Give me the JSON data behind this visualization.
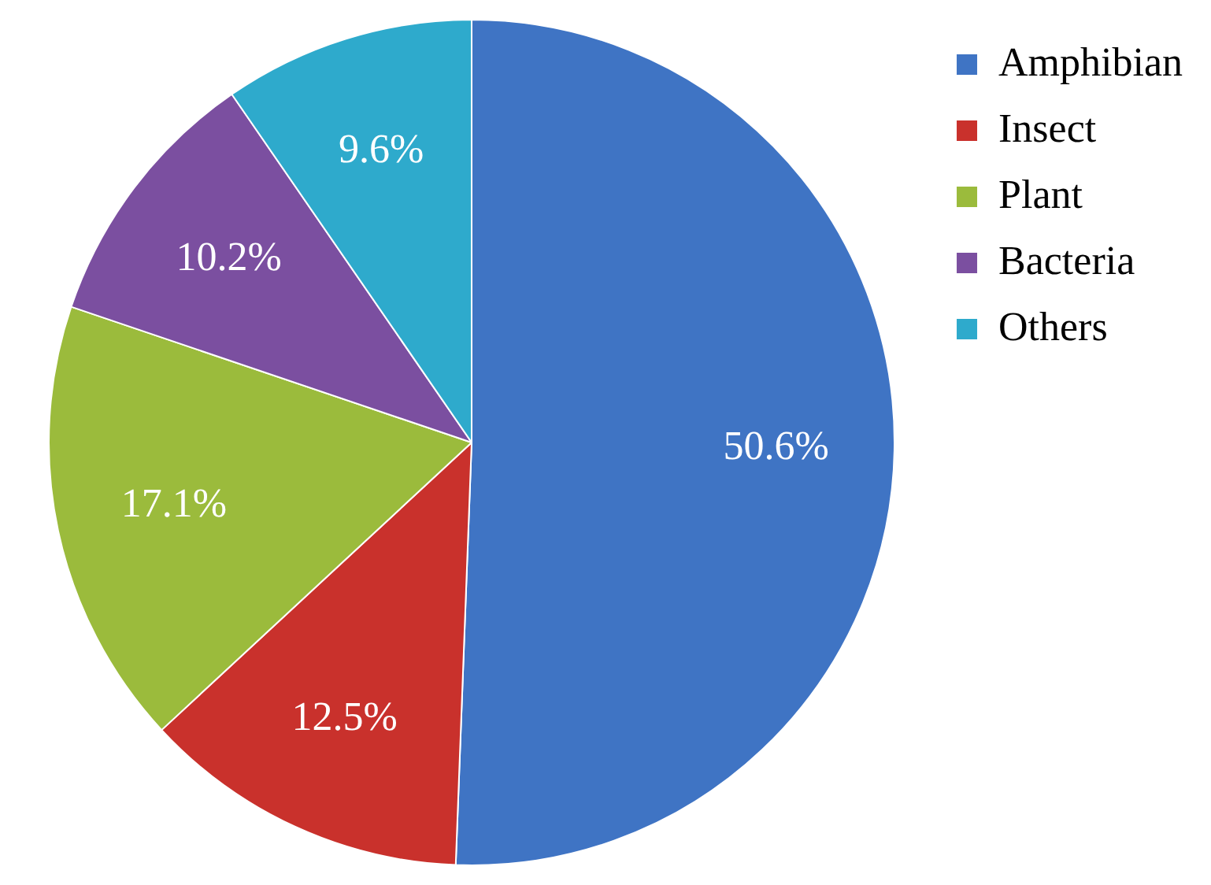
{
  "chart_data": {
    "type": "pie",
    "categories": [
      "Amphibian",
      "Insect",
      "Plant",
      "Bacteria",
      "Others"
    ],
    "values": [
      50.6,
      12.5,
      17.1,
      10.2,
      9.6
    ],
    "colors": [
      "#3f74c4",
      "#c9312c",
      "#9bbb3c",
      "#7b4fa0",
      "#2eaacc"
    ],
    "value_labels": [
      "50.6%",
      "12.5%",
      "17.1%",
      "10.2%",
      "9.6%"
    ],
    "legend": "top right"
  }
}
